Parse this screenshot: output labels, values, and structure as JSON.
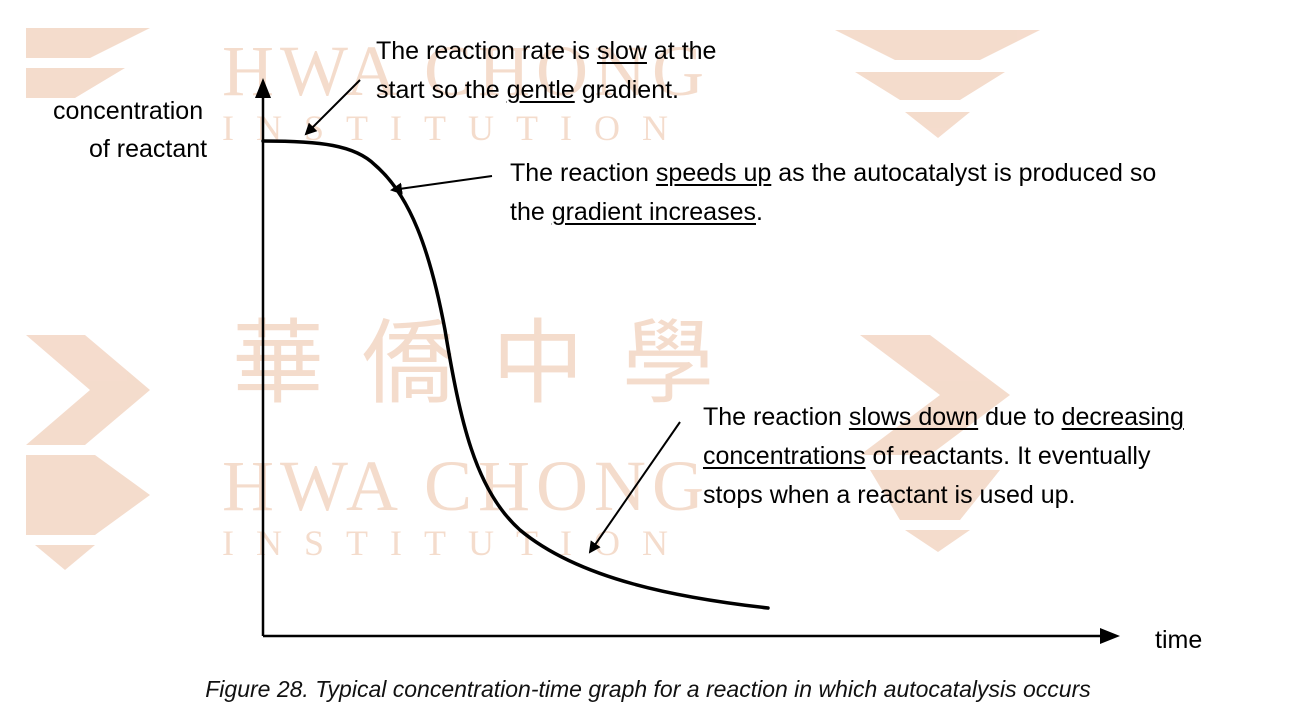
{
  "watermark": {
    "line1": "HWA CHONG",
    "line2": "INSTITUTION",
    "chinese": "華僑中學",
    "color": "#f3d6c4"
  },
  "axes": {
    "y_label_line1": "concentration",
    "y_label_line2": "of reactant",
    "x_label": "time"
  },
  "annotations": {
    "slow": {
      "line1": [
        {
          "t": "The reaction rate is ",
          "u": false
        },
        {
          "t": "slow",
          "u": true
        },
        {
          "t": " at the",
          "u": false
        }
      ],
      "line2": [
        {
          "t": "start so the ",
          "u": false
        },
        {
          "t": "gentle",
          "u": true
        },
        {
          "t": " gradient.",
          "u": false
        }
      ]
    },
    "speeds": {
      "line1": [
        {
          "t": "The reaction ",
          "u": false
        },
        {
          "t": "speeds up",
          "u": true
        },
        {
          "t": " as the autocatalyst is produced so",
          "u": false
        }
      ],
      "line2": [
        {
          "t": "the ",
          "u": false
        },
        {
          "t": "gradient increases",
          "u": true
        },
        {
          "t": ".",
          "u": false
        }
      ]
    },
    "slows": {
      "line1": [
        {
          "t": "The reaction ",
          "u": false
        },
        {
          "t": "slows down",
          "u": true
        },
        {
          "t": " due to ",
          "u": false
        },
        {
          "t": "decreasing",
          "u": true
        }
      ],
      "line2": [
        {
          "t": "concentrations",
          "u": true
        },
        {
          "t": " of reactants. It eventually",
          "u": false
        }
      ],
      "line3": [
        {
          "t": "stops when a reactant is used up.",
          "u": false
        }
      ]
    }
  },
  "caption": "Figure 28. Typical concentration-time graph for a reaction in which autocatalysis occurs"
}
